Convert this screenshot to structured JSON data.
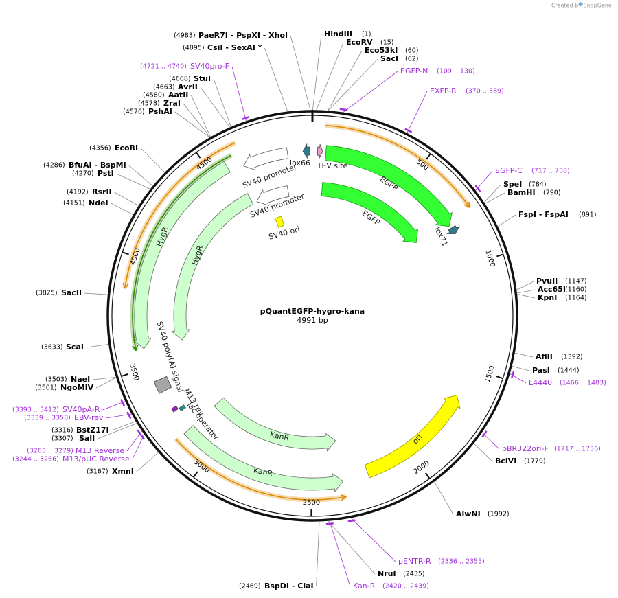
{
  "credit": "Created by SnapGene",
  "title": "pQuantEGFP-hygro-kana",
  "length": {
    "value": 4991,
    "label": "4991 bp"
  },
  "ticks": [
    500,
    1000,
    1500,
    2000,
    2500,
    3000,
    3500,
    4000,
    4500
  ],
  "sites": [
    {
      "site": {
        "value": 4983,
        "label": "(4983)"
      },
      "name": "PaeR7I - PspXI - XhoI"
    },
    {
      "site": {
        "value": 4895,
        "label": "(4895)"
      },
      "name": "CsiI - SexAI *"
    },
    {
      "site": {
        "value": 4668,
        "label": "(4668)"
      },
      "name": "StuI"
    },
    {
      "site": {
        "value": 4663,
        "label": "(4663)"
      },
      "name": "AvrII"
    },
    {
      "site": {
        "value": 4580,
        "label": "(4580)"
      },
      "name": "AatII"
    },
    {
      "site": {
        "value": 4578,
        "label": "(4578)"
      },
      "name": "ZraI"
    },
    {
      "site": {
        "value": 4576,
        "label": "(4576)"
      },
      "name": "PshAI"
    },
    {
      "site": {
        "value": 1,
        "label": "(1)"
      },
      "name": "HindIII"
    },
    {
      "site": {
        "value": 15,
        "label": "(15)"
      },
      "name": "EcoRV"
    },
    {
      "site": {
        "value": 60,
        "label": "(60)"
      },
      "name": "Eco53kI"
    },
    {
      "site": {
        "value": 62,
        "label": "(62)"
      },
      "name": "SacI"
    },
    {
      "site": {
        "value": 784,
        "label": "(784)"
      },
      "name": "SpeI"
    },
    {
      "site": {
        "value": 790,
        "label": "(790)"
      },
      "name": "BamHI"
    },
    {
      "site": {
        "value": 891,
        "label": "(891)"
      },
      "name": "FspI - FspAI"
    },
    {
      "site": {
        "value": 1147,
        "label": "(1147)"
      },
      "name": "PvuII"
    },
    {
      "site": {
        "value": 1160,
        "label": "(1160)"
      },
      "name": "Acc65I"
    },
    {
      "site": {
        "value": 1164,
        "label": "(1164)"
      },
      "name": "KpnI"
    },
    {
      "site": {
        "value": 1392,
        "label": "(1392)"
      },
      "name": "AflII"
    },
    {
      "site": {
        "value": 1444,
        "label": "(1444)"
      },
      "name": "PasI"
    },
    {
      "site": {
        "value": 1779,
        "label": "(1779)"
      },
      "name": "BciVI"
    },
    {
      "site": {
        "value": 1992,
        "label": "(1992)"
      },
      "name": "AlwNI"
    },
    {
      "site": {
        "value": 2435,
        "label": "(2435)"
      },
      "name": "NruI"
    },
    {
      "site": {
        "value": 2469,
        "label": "(2469)"
      },
      "name": "BspDI - ClaI"
    },
    {
      "site": {
        "value": 4356,
        "label": "(4356)"
      },
      "name": "EcoRI"
    },
    {
      "site": {
        "value": 4286,
        "label": "(4286)"
      },
      "name": "BfuAI - BspMI"
    },
    {
      "site": {
        "value": 4270,
        "label": "(4270)"
      },
      "name": "PstI"
    },
    {
      "site": {
        "value": 4192,
        "label": "(4192)"
      },
      "name": "RsrII"
    },
    {
      "site": {
        "value": 4151,
        "label": "(4151)"
      },
      "name": "NdeI"
    },
    {
      "site": {
        "value": 3825,
        "label": "(3825)"
      },
      "name": "SacII"
    },
    {
      "site": {
        "value": 3633,
        "label": "(3633)"
      },
      "name": "ScaI"
    },
    {
      "site": {
        "value": 3503,
        "label": "(3503)"
      },
      "name": "NaeI"
    },
    {
      "site": {
        "value": 3501,
        "label": "(3501)"
      },
      "name": "NgoMIV"
    },
    {
      "site": {
        "value": 3316,
        "label": "(3316)"
      },
      "name": "BstZ17I"
    },
    {
      "site": {
        "value": 3307,
        "label": "(3307)"
      },
      "name": "SalI"
    },
    {
      "site": {
        "value": 3167,
        "label": "(3167)"
      },
      "name": "XmnI"
    }
  ],
  "primers": [
    {
      "name": "SV40pro-F",
      "start": 4721,
      "end": 4740,
      "range": "(4721 .. 4740)"
    },
    {
      "name": "EGFP-N",
      "start": 109,
      "end": 130,
      "range": "(109 .. 130)"
    },
    {
      "name": "EXFP-R",
      "start": 370,
      "end": 389,
      "range": "(370 .. 389)"
    },
    {
      "name": "EGFP-C",
      "start": 717,
      "end": 738,
      "range": "(717 .. 738)"
    },
    {
      "name": "L4440",
      "start": 1466,
      "end": 1483,
      "range": "(1466 .. 1483)"
    },
    {
      "name": "pBR322ori-F",
      "start": 1717,
      "end": 1736,
      "range": "(1717 .. 1736)"
    },
    {
      "name": "pENTR-R",
      "start": 2336,
      "end": 2355,
      "range": "(2336 .. 2355)"
    },
    {
      "name": "Kan-R",
      "start": 2420,
      "end": 2439,
      "range": "(2420 .. 2439)"
    },
    {
      "name": "SV40pA-R",
      "start": 3393,
      "end": 3412,
      "range": "(3393 .. 3412)"
    },
    {
      "name": "EBV-rev",
      "start": 3339,
      "end": 3358,
      "range": "(3339 .. 3358)"
    },
    {
      "name": "M13 Reverse",
      "start": 3263,
      "end": 3279,
      "range": "(3263 .. 3279)"
    },
    {
      "name": "M13/pUC Reverse",
      "start": 3244,
      "end": 3266,
      "range": "(3244 .. 3266)"
    }
  ],
  "features": [
    {
      "name": "EGFP",
      "start": 65,
      "end": 788,
      "direction": "cw",
      "color": "#33ff33"
    },
    {
      "name": "EGFP",
      "start": 60,
      "end": 760,
      "direction": "cw",
      "color": "#33ff33"
    },
    {
      "name": "SV40 promoter",
      "start": 4649,
      "end": 4870,
      "direction": "ccw",
      "color": "#ffffff"
    },
    {
      "name": "SV40 promoter",
      "start": 4631,
      "end": 4838,
      "direction": "ccw",
      "color": "#ffffff"
    },
    {
      "name": "SV40 ori",
      "start": 4700,
      "end": 4750,
      "direction": "none",
      "color": "#ffff00"
    },
    {
      "name": "HygR",
      "start": 3590,
      "end": 4578,
      "direction": "ccw",
      "color": "#ccffcc"
    },
    {
      "name": "HygR",
      "start": 3598,
      "end": 4603,
      "direction": "ccw",
      "color": "#ccffcc"
    },
    {
      "name": "SV40 poly(A) signal",
      "start": 3370,
      "end": 3430,
      "direction": "none",
      "color": "#a6a6a6"
    },
    {
      "name": "M13 rev",
      "start": 3262,
      "end": 3280,
      "direction": "none",
      "color": "#a020c0"
    },
    {
      "name": "lac operator",
      "start": 3245,
      "end": 3262,
      "direction": "none",
      "color": "#2a8c8c"
    },
    {
      "name": "KanR",
      "start": 2349,
      "end": 3153,
      "direction": "ccw",
      "color": "#ccffcc"
    },
    {
      "name": "KanR",
      "start": 2349,
      "end": 3153,
      "direction": "ccw",
      "color": "#ccffcc"
    },
    {
      "name": "ori",
      "start": 1647,
      "end": 2227,
      "direction": "ccw",
      "color": "#ffff00"
    },
    {
      "name": "lox66",
      "start": 4945,
      "end": 4978,
      "direction": "ccw",
      "color": "#317b8f"
    },
    {
      "name": "lox71",
      "start": 800,
      "end": 834,
      "direction": "cw",
      "color": "#317b8f"
    },
    {
      "name": "TEV site",
      "start": 25,
      "end": 50,
      "direction": "cw",
      "color": "#e6a0c8"
    }
  ],
  "orfs": [
    {
      "start": 55,
      "end": 767,
      "direction": "cw",
      "color": "#e08a00"
    },
    {
      "start": 3860,
      "end": 4657,
      "direction": "ccw",
      "color": "#e08a00"
    },
    {
      "start": 3590,
      "end": 4620,
      "direction": "ccw",
      "color": "#2c8a00"
    },
    {
      "start": 2350,
      "end": 3161,
      "direction": "ccw",
      "color": "#e08a00"
    }
  ]
}
